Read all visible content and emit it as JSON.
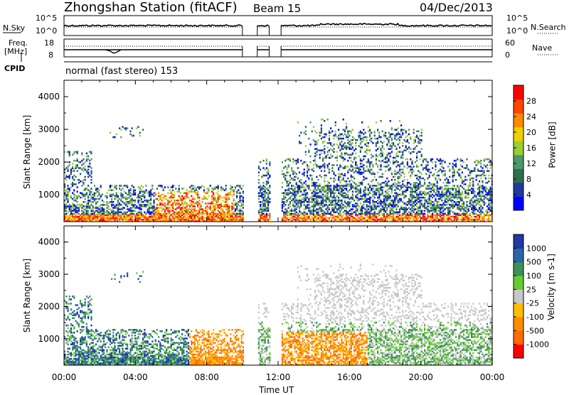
{
  "header": {
    "station": "Zhongshan Station (fitACF)",
    "beam": "Beam 15",
    "date": "04/Dec/2013"
  },
  "top_panels": {
    "nsky_label": "N.Sky",
    "nsky_ticks": [
      "10^5",
      "10^0"
    ],
    "nsearch_label": "N.Search",
    "nsearch_ticks": [
      "10^5",
      "10^0"
    ],
    "freq_label": "Freq.",
    "freq_unit": "[MHz]",
    "freq_ticks": [
      "18",
      "8"
    ],
    "nave_label": "Nave",
    "nave_ticks": [
      "60",
      "0"
    ],
    "cpid_label": "CPID",
    "cpid_value": "normal (fast stereo) 153"
  },
  "colors": {
    "power": [
      "#0000ff",
      "#1f3a9f",
      "#2f6f4f",
      "#4c9a6a",
      "#9acd32",
      "#f0d000",
      "#ff8c00",
      "#ff4500",
      "#ff0000"
    ],
    "velocity": [
      "#ff0000",
      "#ff6a00",
      "#ff8c00",
      "#ffbf00",
      "#c8c8c8",
      "#66cc33",
      "#3f8f5a",
      "#2a66a8",
      "#1f3aa0"
    ]
  },
  "chart_data": [
    {
      "type": "heatmap",
      "name": "power",
      "ylabel": "Slant Range [km]",
      "ylim": [
        180,
        4500
      ],
      "yticks": [
        "4000",
        "3000",
        "2000",
        "1000"
      ],
      "xticks": [
        "00:00",
        "04:00",
        "08:00",
        "12:00",
        "16:00",
        "20:00",
        "00:00"
      ],
      "xlim": [
        "00:00",
        "24:00"
      ],
      "colorbar_label": "Power [dB]",
      "colorbar_ticks": [
        "28",
        "24",
        "20",
        "16",
        "12",
        "8",
        "4"
      ],
      "data_gaps_ut": [
        [
          "10:00",
          "10:50"
        ],
        [
          "11:30",
          "12:10"
        ]
      ],
      "echo_regions": [
        {
          "ut": [
            "00:00",
            "10:00"
          ],
          "range_km": [
            180,
            1300
          ],
          "power_db": [
            4,
            30
          ]
        },
        {
          "ut": [
            "12:10",
            "24:00"
          ],
          "range_km": [
            180,
            3300
          ],
          "power_db": [
            4,
            30
          ]
        }
      ]
    },
    {
      "type": "heatmap",
      "name": "velocity",
      "ylabel": "Slant Range [km]",
      "ylim": [
        180,
        4500
      ],
      "yticks": [
        "4000",
        "3000",
        "2000",
        "1000"
      ],
      "xticks": [
        "00:00",
        "04:00",
        "08:00",
        "12:00",
        "16:00",
        "20:00",
        "00:00"
      ],
      "xlabel": "Time UT",
      "colorbar_label": "Velocity [m s-1]",
      "colorbar_ticks": [
        "1000",
        "500",
        "100",
        "25",
        "-25",
        "-100",
        "-500",
        "-1000"
      ],
      "data_gaps_ut": [
        [
          "10:00",
          "10:50"
        ],
        [
          "11:30",
          "12:10"
        ]
      ],
      "echo_regions": [
        {
          "ut": [
            "00:00",
            "10:00"
          ],
          "range_km": [
            180,
            1300
          ],
          "velocity_ms": [
            -300,
            600
          ]
        },
        {
          "ut": [
            "12:10",
            "24:00"
          ],
          "range_km": [
            180,
            3300
          ],
          "velocity_ms": [
            -500,
            300
          ]
        }
      ]
    }
  ]
}
